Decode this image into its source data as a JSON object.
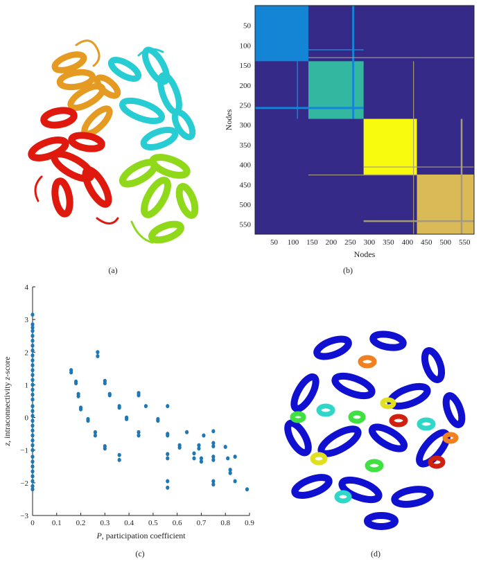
{
  "captions": {
    "a": "(a)",
    "b": "(b)",
    "c": "(c)",
    "d": "(d)"
  },
  "panel_b": {
    "xlabel": "Nodes",
    "ylabel": "Nodes",
    "x_ticks": [
      "50",
      "100",
      "150",
      "200",
      "250",
      "300",
      "350",
      "400",
      "450",
      "500",
      "550"
    ],
    "y_ticks": [
      "50",
      "100",
      "150",
      "200",
      "250",
      "300",
      "350",
      "400",
      "450",
      "500",
      "550"
    ],
    "colors": {
      "background": "#352a87",
      "module1": "#1484d4",
      "module2": "#33b7a0",
      "module3": "#f9fb0e",
      "module4": "#d9ba56",
      "boundary": "#a59a7a"
    }
  },
  "chart_data": {
    "type": "scatter",
    "xlabel_symbol": "P",
    "xlabel_text": ", participation coefficient",
    "ylabel_symbol": "z",
    "ylabel_text": ", intraconnectivity ",
    "ylabel_symbol2": "z",
    "ylabel_text2": "-score",
    "xlim": [
      0,
      0.9
    ],
    "ylim": [
      -3,
      4
    ],
    "x_ticks": [
      "0",
      "0.1",
      "0.2",
      "0.3",
      "0.4",
      "0.5",
      "0.6",
      "0.7",
      "0.8",
      "0.9"
    ],
    "y_ticks": [
      "−3",
      "−2",
      "−1",
      "0",
      "1",
      "2",
      "3",
      "4"
    ],
    "point_color": "#1f77b4",
    "points": [
      [
        0,
        3.15
      ],
      [
        0,
        2.85
      ],
      [
        0,
        2.75
      ],
      [
        0,
        2.65
      ],
      [
        0,
        2.5
      ],
      [
        0,
        2.35
      ],
      [
        0,
        2.2
      ],
      [
        0,
        2.05
      ],
      [
        0,
        1.9
      ],
      [
        0,
        1.75
      ],
      [
        0,
        1.6
      ],
      [
        0,
        1.45
      ],
      [
        0,
        1.3
      ],
      [
        0,
        1.15
      ],
      [
        0,
        1.0
      ],
      [
        0,
        0.85
      ],
      [
        0,
        0.7
      ],
      [
        0,
        0.55
      ],
      [
        0,
        0.35
      ],
      [
        0,
        0.2
      ],
      [
        0,
        0.05
      ],
      [
        0,
        -0.1
      ],
      [
        0,
        -0.25
      ],
      [
        0,
        -0.4
      ],
      [
        0,
        -0.55
      ],
      [
        0,
        -0.7
      ],
      [
        0,
        -0.85
      ],
      [
        0,
        -1.0
      ],
      [
        0,
        -1.2
      ],
      [
        0,
        -1.35
      ],
      [
        0,
        -1.5
      ],
      [
        0,
        -1.65
      ],
      [
        0,
        -1.8
      ],
      [
        0,
        -1.95
      ],
      [
        0,
        -2.1
      ],
      [
        0,
        -2.2
      ],
      [
        0.16,
        1.45
      ],
      [
        0.16,
        1.38
      ],
      [
        0.18,
        1.1
      ],
      [
        0.18,
        1.05
      ],
      [
        0.19,
        0.72
      ],
      [
        0.19,
        0.65
      ],
      [
        0.2,
        0.3
      ],
      [
        0.2,
        0.25
      ],
      [
        0.23,
        -0.05
      ],
      [
        0.23,
        -0.1
      ],
      [
        0.26,
        -0.45
      ],
      [
        0.26,
        -0.55
      ],
      [
        0.27,
        2.0
      ],
      [
        0.27,
        1.88
      ],
      [
        0.3,
        1.12
      ],
      [
        0.3,
        1.05
      ],
      [
        0.3,
        -0.88
      ],
      [
        0.3,
        -0.95
      ],
      [
        0.32,
        0.72
      ],
      [
        0.32,
        0.68
      ],
      [
        0.36,
        0.35
      ],
      [
        0.36,
        0.3
      ],
      [
        0.36,
        -1.15
      ],
      [
        0.36,
        -1.3
      ],
      [
        0.39,
        0.0
      ],
      [
        0.39,
        -0.05
      ],
      [
        0.44,
        0.75
      ],
      [
        0.44,
        0.68
      ],
      [
        0.44,
        -0.45
      ],
      [
        0.44,
        -0.55
      ],
      [
        0.47,
        0.35
      ],
      [
        0.52,
        -0.05
      ],
      [
        0.52,
        -0.1
      ],
      [
        0.56,
        0.35
      ],
      [
        0.56,
        -0.5
      ],
      [
        0.56,
        -0.55
      ],
      [
        0.56,
        -1.12
      ],
      [
        0.56,
        -1.25
      ],
      [
        0.56,
        -1.95
      ],
      [
        0.56,
        -2.15
      ],
      [
        0.61,
        -0.85
      ],
      [
        0.61,
        -0.92
      ],
      [
        0.64,
        -0.45
      ],
      [
        0.67,
        -1.1
      ],
      [
        0.67,
        -1.25
      ],
      [
        0.69,
        -0.85
      ],
      [
        0.69,
        -0.95
      ],
      [
        0.7,
        -1.25
      ],
      [
        0.7,
        -1.35
      ],
      [
        0.71,
        -0.55
      ],
      [
        0.75,
        -0.42
      ],
      [
        0.75,
        -0.78
      ],
      [
        0.75,
        -0.88
      ],
      [
        0.75,
        -1.2
      ],
      [
        0.75,
        -1.3
      ],
      [
        0.75,
        -1.95
      ],
      [
        0.75,
        -2.05
      ],
      [
        0.8,
        -0.9
      ],
      [
        0.81,
        -1.25
      ],
      [
        0.82,
        -1.6
      ],
      [
        0.82,
        -1.7
      ],
      [
        0.84,
        -1.2
      ],
      [
        0.84,
        -1.95
      ],
      [
        0.89,
        -2.2
      ]
    ]
  }
}
